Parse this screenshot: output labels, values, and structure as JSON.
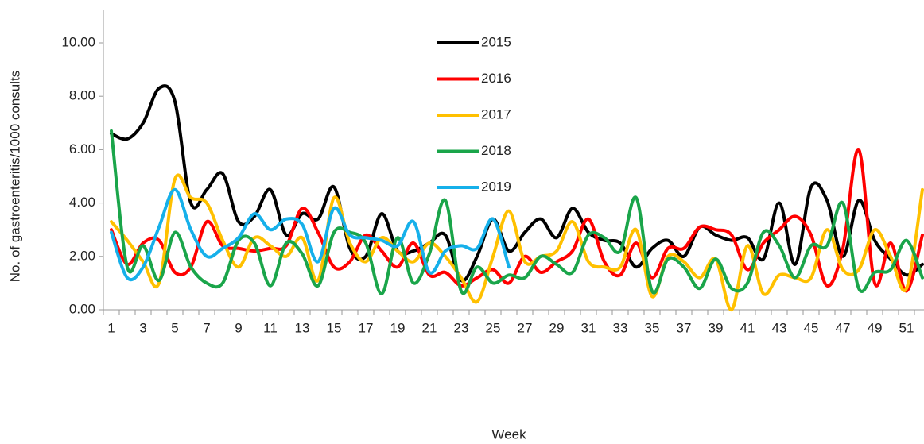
{
  "chart_data": {
    "type": "line",
    "x_label": "Week",
    "y_label": "No. of gastroenteritis/1000 consults",
    "categories": [
      1,
      null,
      3,
      null,
      5,
      null,
      7,
      null,
      9,
      null,
      11,
      null,
      13,
      null,
      15,
      null,
      17,
      null,
      19,
      null,
      21,
      null,
      23,
      null,
      25,
      null,
      27,
      null,
      29,
      null,
      31,
      null,
      33,
      null,
      35,
      null,
      37,
      null,
      39,
      null,
      41,
      null,
      43,
      null,
      45,
      null,
      47,
      null,
      49,
      null,
      51,
      null
    ],
    "ylim": [
      0,
      10
    ],
    "yticks": [
      {
        "value": 0,
        "label": "0.00"
      },
      {
        "value": 2,
        "label": "2.00"
      },
      {
        "value": 4,
        "label": "4.00"
      },
      {
        "value": 6,
        "label": "6.00"
      },
      {
        "value": 8,
        "label": "8.00"
      },
      {
        "value": 10,
        "label": "10.00"
      }
    ],
    "smooth": true,
    "series": [
      {
        "name": "2015",
        "color": "#000000",
        "values": [
          6.6,
          6.4,
          7.0,
          8.3,
          7.8,
          4.0,
          4.5,
          5.1,
          3.3,
          3.5,
          4.5,
          2.8,
          3.6,
          3.4,
          4.6,
          2.3,
          2.0,
          3.6,
          2.2,
          2.2,
          2.5,
          2.8,
          1.1,
          2.0,
          3.4,
          2.2,
          2.9,
          3.4,
          2.7,
          3.8,
          2.9,
          2.6,
          2.5,
          1.6,
          2.3,
          2.6,
          2.0,
          3.1,
          2.8,
          2.6,
          2.7,
          1.9,
          4.0,
          1.7,
          4.6,
          4.1,
          2.0,
          4.1,
          2.6,
          1.9,
          1.3,
          1.7
        ]
      },
      {
        "name": "2016",
        "color": "#ff0000",
        "values": [
          3.0,
          1.7,
          2.5,
          2.6,
          1.4,
          1.6,
          3.3,
          2.4,
          2.3,
          2.2,
          2.3,
          2.4,
          3.8,
          2.9,
          1.6,
          1.8,
          2.8,
          2.2,
          1.6,
          2.5,
          1.3,
          1.4,
          0.9,
          1.2,
          1.5,
          1.0,
          2.0,
          1.4,
          1.8,
          2.2,
          3.4,
          1.8,
          1.3,
          2.5,
          1.2,
          2.3,
          2.3,
          3.1,
          3.0,
          2.8,
          1.5,
          2.5,
          3.0,
          3.5,
          2.8,
          0.9,
          2.3,
          6.0,
          1.0,
          2.5,
          0.7,
          2.8
        ]
      },
      {
        "name": "2017",
        "color": "#ffc000",
        "values": [
          3.3,
          2.6,
          1.8,
          1.0,
          4.9,
          4.2,
          4.0,
          2.6,
          1.6,
          2.7,
          2.4,
          2.0,
          2.7,
          1.1,
          4.2,
          2.5,
          1.8,
          2.7,
          2.2,
          1.8,
          2.5,
          2.0,
          1.2,
          0.3,
          2.0,
          3.7,
          1.8,
          2.0,
          2.2,
          3.3,
          1.8,
          1.6,
          1.6,
          3.0,
          0.5,
          2.0,
          1.8,
          1.2,
          1.9,
          0.0,
          2.4,
          0.6,
          1.3,
          1.2,
          1.2,
          3.0,
          1.5,
          1.5,
          3.0,
          2.0,
          0.8,
          4.5
        ]
      },
      {
        "name": "2018",
        "color": "#1aa54a",
        "values": [
          6.7,
          1.6,
          2.4,
          1.1,
          2.9,
          1.6,
          1.0,
          1.0,
          2.6,
          2.5,
          0.9,
          2.5,
          2.1,
          0.9,
          2.9,
          2.9,
          2.5,
          0.6,
          2.7,
          1.0,
          2.1,
          4.1,
          0.7,
          1.6,
          1.0,
          1.3,
          1.2,
          2.0,
          1.7,
          1.4,
          2.8,
          2.7,
          2.2,
          4.2,
          0.7,
          1.9,
          1.6,
          0.8,
          1.9,
          0.8,
          1.0,
          2.9,
          2.4,
          1.2,
          2.4,
          2.4,
          4.0,
          0.8,
          1.4,
          1.5,
          2.6,
          1.2
        ]
      },
      {
        "name": "2019",
        "color": "#16b0ea",
        "values": [
          2.9,
          1.2,
          1.6,
          3.1,
          4.5,
          3.0,
          2.0,
          2.3,
          2.7,
          3.6,
          3.0,
          3.4,
          3.2,
          1.8,
          3.8,
          2.8,
          2.7,
          2.6,
          2.4,
          3.3,
          1.4,
          2.2,
          2.4,
          2.3,
          3.4,
          1.6,
          null,
          null,
          null,
          null,
          null,
          null,
          null,
          null,
          null,
          null,
          null,
          null,
          null,
          null,
          null,
          null,
          null,
          null,
          null,
          null,
          null,
          null,
          null,
          null,
          null,
          null
        ]
      }
    ]
  }
}
